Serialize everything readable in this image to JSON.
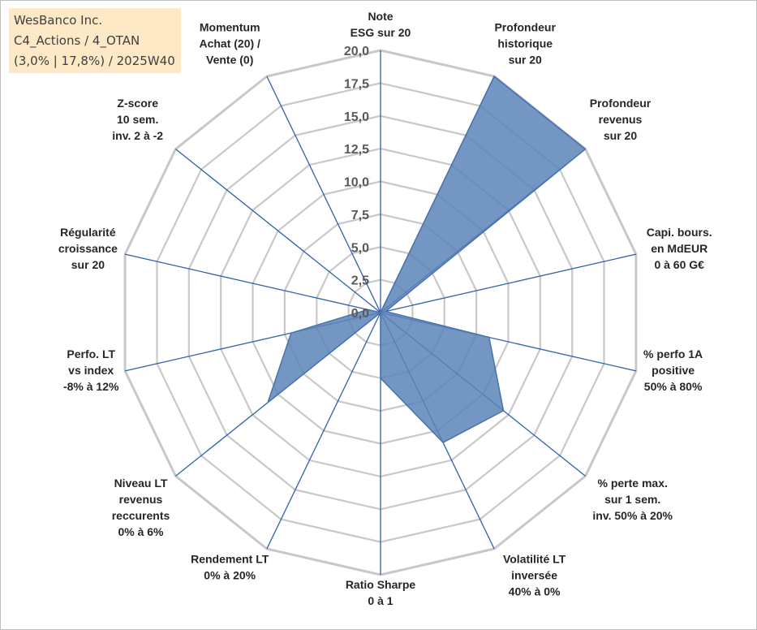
{
  "info_box": {
    "company": "WesBanco Inc.",
    "portfolio": "C4_Actions / 4_OTAN",
    "stats": "(3,0% | 17,8%) / 2025W40"
  },
  "colors": {
    "grid": "#c8c8c8",
    "spoke": "#2f5fb0",
    "fill": "#5b84b8",
    "stroke": "#4a72aa"
  },
  "chart_data": {
    "type": "radar",
    "title": "",
    "rmin": 0,
    "rmax": 20,
    "ticks": [
      "0,0",
      "2,5",
      "5,0",
      "7,5",
      "10,0",
      "12,5",
      "15,0",
      "17,5",
      "20,0"
    ],
    "tick_values": [
      0,
      2.5,
      5,
      7.5,
      10,
      12.5,
      15,
      17.5,
      20
    ],
    "axes": [
      {
        "label": [
          "Note",
          "ESG sur 20"
        ],
        "value": 0
      },
      {
        "label": [
          "Profondeur",
          "historique",
          "sur 20"
        ],
        "value": 20
      },
      {
        "label": [
          "Profondeur",
          "revenus",
          "sur 20"
        ],
        "value": 20
      },
      {
        "label": [
          "Capi. bours.",
          "en MdEUR",
          "0 à 60 G€"
        ],
        "value": 0.4
      },
      {
        "label": [
          "% perfo 1A",
          "positive",
          "50% à 80%"
        ],
        "value": 8.5
      },
      {
        "label": [
          "% perte max.",
          "sur 1 sem.",
          "inv. 50% à 20%"
        ],
        "value": 12
      },
      {
        "label": [
          "Volatilité LT",
          "inversée",
          "40% à 0%"
        ],
        "value": 11
      },
      {
        "label": [
          "Ratio Sharpe",
          "0 à 1"
        ],
        "value": 5
      },
      {
        "label": [
          "Rendement LT",
          "0% à 20%"
        ],
        "value": 0
      },
      {
        "label": [
          "Niveau LT",
          "revenus",
          "reccurents",
          "0% à 6%"
        ],
        "value": 11
      },
      {
        "label": [
          "Perfo. LT",
          "vs index",
          "-8% à 12%"
        ],
        "value": 7
      },
      {
        "label": [
          "Régularité",
          "croissance",
          "sur 20"
        ],
        "value": 1
      },
      {
        "label": [
          "Z-score",
          "10 sem.",
          "inv. 2 à -2"
        ],
        "value": 0
      },
      {
        "label": [
          "Momentum",
          "Achat (20) /",
          "Vente (0)"
        ],
        "value": 0
      }
    ]
  }
}
